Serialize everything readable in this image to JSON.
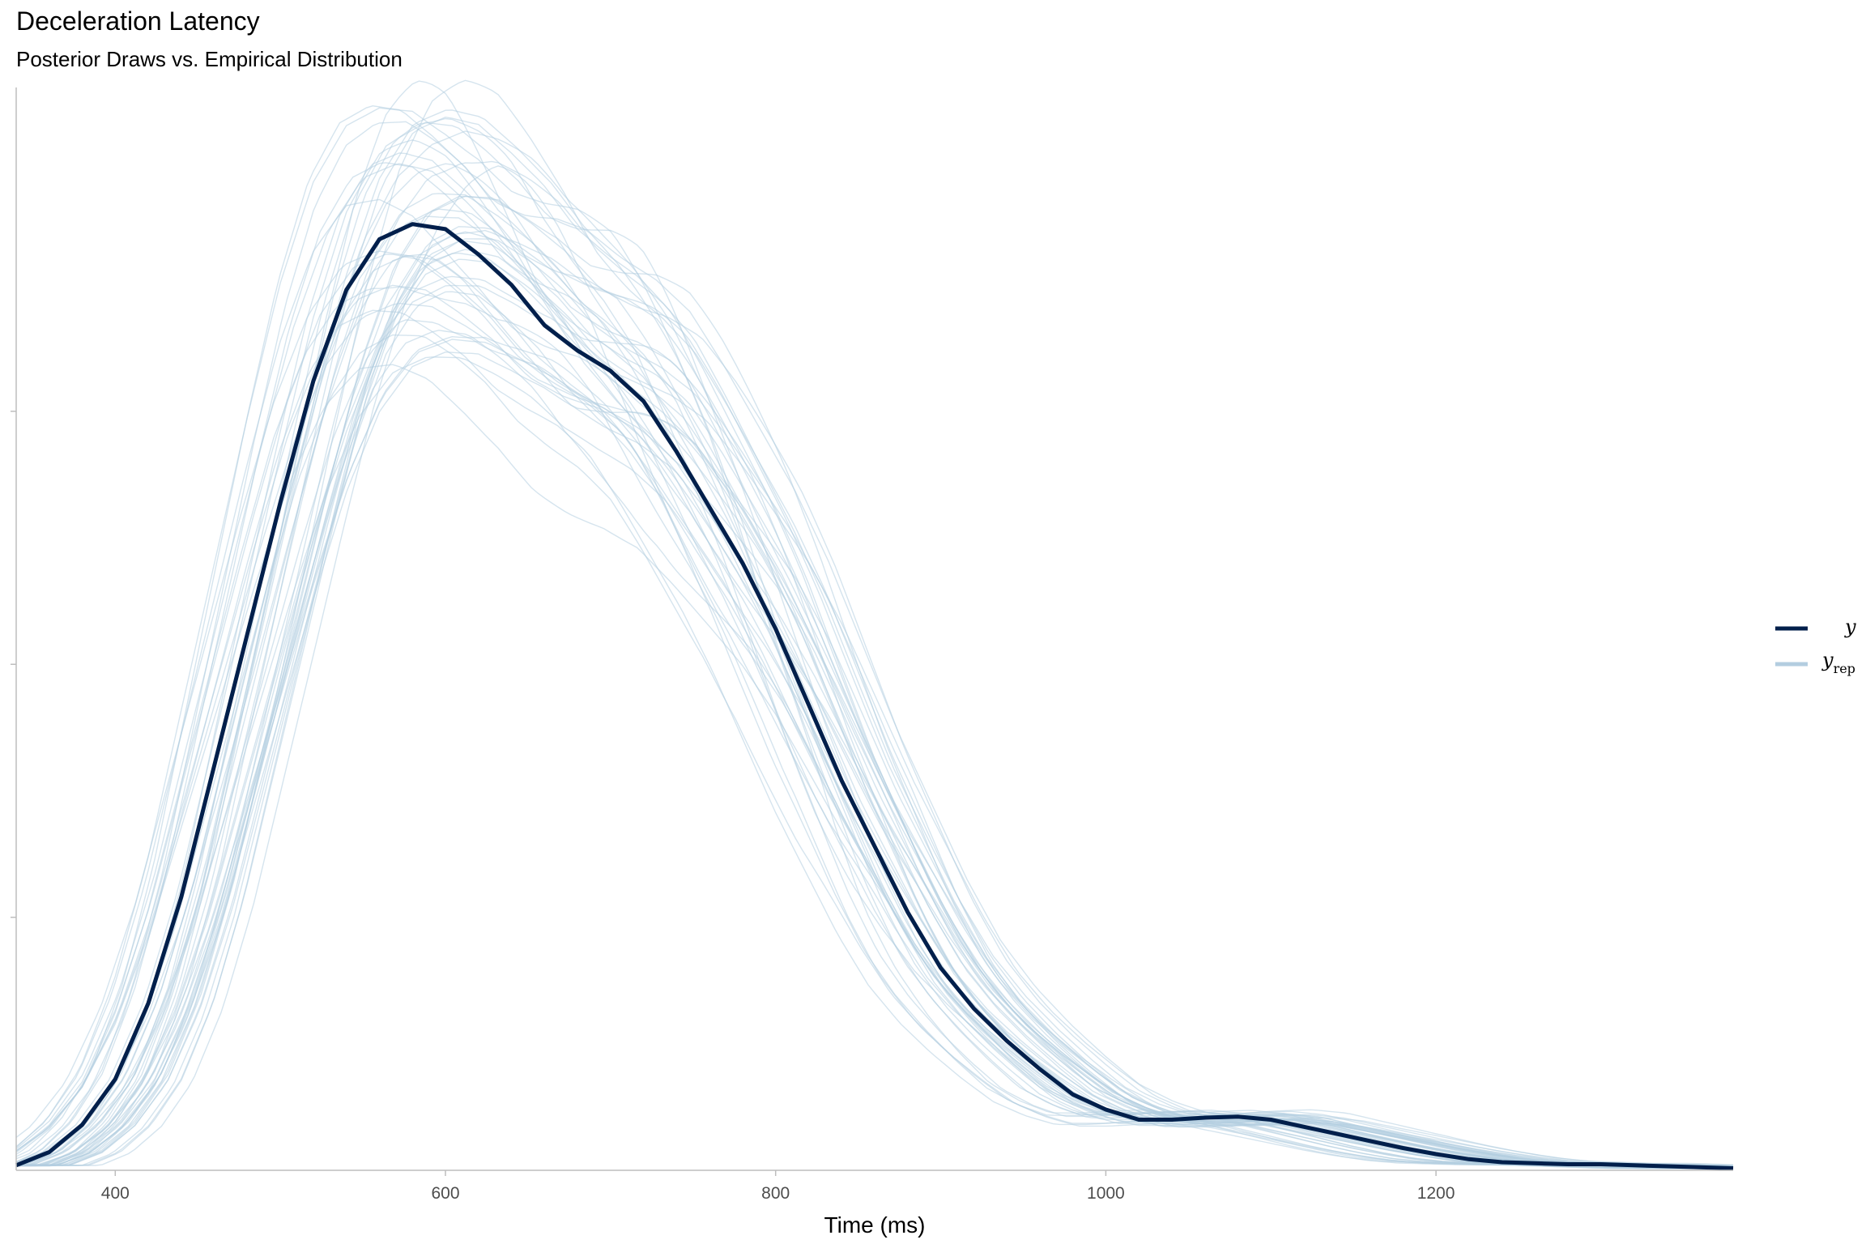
{
  "chart_data": {
    "type": "line",
    "title": "Deceleration Latency",
    "subtitle": "Posterior Draws vs. Empirical Distribution",
    "xlabel": "Time (ms)",
    "ylabel": "",
    "xlim": [
      340,
      1380
    ],
    "ylim": [
      0,
      1.07
    ],
    "x_ticks": [
      400,
      600,
      800,
      1000,
      1200
    ],
    "y_ticks": [
      0.25,
      0.5,
      0.75
    ],
    "y_tick_labels_shown": false,
    "grid": false,
    "legend_position": "right",
    "legend": [
      {
        "key": "y",
        "label": "y",
        "color": "#011f4b"
      },
      {
        "key": "yrep",
        "label": "y",
        "subscript": "rep",
        "color": "#b3cde0"
      }
    ],
    "observed": {
      "name": "y",
      "color": "#011f4b",
      "x": [
        340,
        360,
        380,
        400,
        420,
        440,
        460,
        480,
        500,
        520,
        540,
        560,
        580,
        600,
        620,
        640,
        660,
        680,
        700,
        720,
        740,
        760,
        780,
        800,
        820,
        840,
        860,
        880,
        900,
        920,
        940,
        960,
        980,
        1000,
        1020,
        1040,
        1060,
        1080,
        1100,
        1120,
        1140,
        1160,
        1180,
        1200,
        1220,
        1240,
        1260,
        1280,
        1300,
        1320,
        1340,
        1360,
        1380
      ],
      "y": [
        0.005,
        0.018,
        0.045,
        0.09,
        0.165,
        0.27,
        0.4,
        0.53,
        0.66,
        0.78,
        0.87,
        0.92,
        0.935,
        0.93,
        0.905,
        0.875,
        0.835,
        0.81,
        0.79,
        0.76,
        0.71,
        0.655,
        0.6,
        0.535,
        0.46,
        0.385,
        0.32,
        0.255,
        0.2,
        0.16,
        0.128,
        0.1,
        0.075,
        0.06,
        0.05,
        0.05,
        0.052,
        0.053,
        0.05,
        0.043,
        0.036,
        0.029,
        0.022,
        0.016,
        0.011,
        0.008,
        0.007,
        0.006,
        0.006,
        0.005,
        0.004,
        0.003,
        0.002
      ]
    },
    "replicates_name": "y_rep",
    "replicates_color": "#b3cde0",
    "replicate_count": 50,
    "replicate_peak_range": [
      0.71,
      1.07
    ],
    "replicate_mode_range_ms": [
      570,
      720
    ]
  }
}
